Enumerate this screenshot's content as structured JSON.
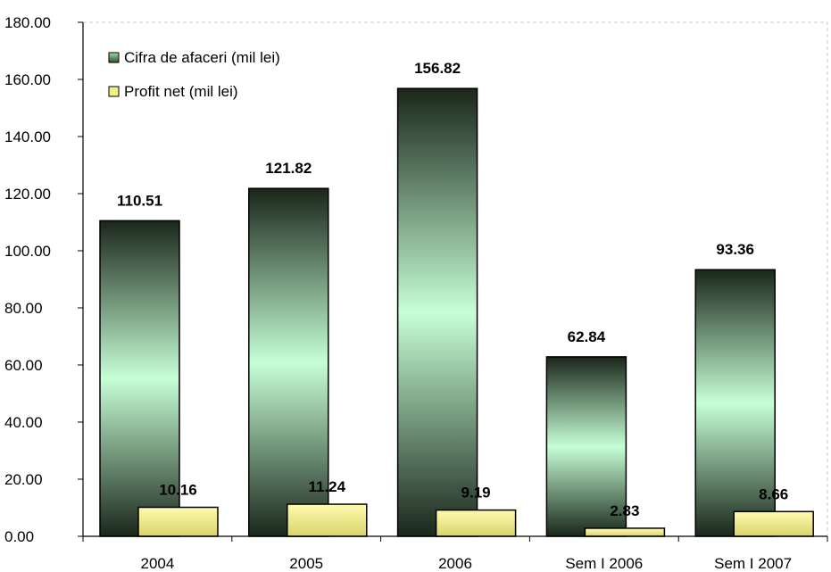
{
  "chart_data": {
    "type": "bar",
    "categories": [
      "2004",
      "2005",
      "2006",
      "Sem I 2006",
      "Sem I 2007"
    ],
    "series": [
      {
        "name": "Cifra de afaceri (mil lei)",
        "values": [
          110.51,
          121.82,
          156.82,
          62.84,
          93.36
        ],
        "labels": [
          "110.51",
          "121.82",
          "156.82",
          "62.84",
          "93.36"
        ],
        "color": "#c6ffd6"
      },
      {
        "name": "Profit net (mil lei)",
        "values": [
          10.16,
          11.24,
          9.19,
          2.83,
          8.66
        ],
        "labels": [
          "10.16",
          "11.24",
          "9.19",
          "2.83",
          "8.66"
        ],
        "color": "#f2ee8a"
      }
    ],
    "yticks": [
      "0.00",
      "20.00",
      "40.00",
      "60.00",
      "80.00",
      "100.00",
      "120.00",
      "140.00",
      "160.00",
      "180.00"
    ],
    "ylim": [
      0,
      180
    ],
    "grid": false,
    "legend": "top-left",
    "title": "",
    "xlabel": "",
    "ylabel": ""
  }
}
